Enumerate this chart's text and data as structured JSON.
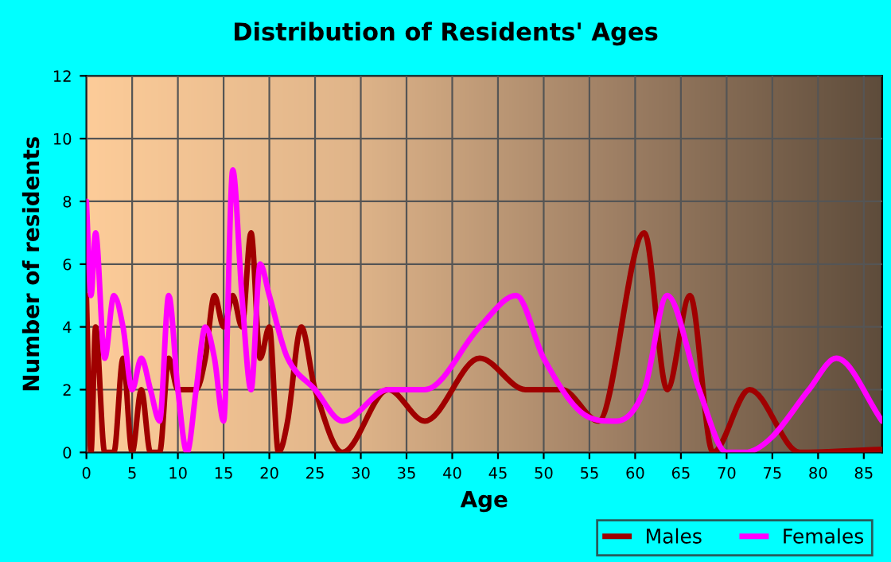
{
  "chart_data": {
    "type": "line",
    "title": "Distribution of Residents' Ages",
    "xlabel": "Age",
    "ylabel": "Number of residents",
    "series": [
      {
        "name": "Males",
        "color": "#a00000",
        "x": [
          0,
          0.5,
          1,
          2,
          3,
          4,
          5,
          6,
          7,
          8,
          9,
          10,
          11,
          12,
          13,
          14,
          15,
          16,
          17,
          18,
          19,
          20,
          21,
          22,
          23.5,
          25,
          28,
          33,
          37,
          43,
          48,
          52,
          56,
          61,
          63.5,
          66,
          68.5,
          72.5,
          78,
          87
        ],
        "values": [
          5,
          0,
          4,
          0,
          0,
          3,
          0,
          2,
          0,
          0,
          3,
          2,
          2,
          2,
          3,
          5,
          4,
          5,
          4,
          7,
          3,
          4,
          0,
          1,
          4,
          2,
          0,
          2,
          1,
          3,
          2,
          2,
          1,
          7,
          2,
          5,
          0,
          2,
          0,
          0.1
        ]
      },
      {
        "name": "Females",
        "color": "#ff00ff",
        "x": [
          0,
          0.5,
          1,
          2,
          3,
          4,
          5,
          6,
          7,
          8,
          9,
          10,
          11,
          12,
          13,
          14,
          15,
          16,
          17,
          18,
          19,
          20,
          22,
          25,
          28,
          33,
          37,
          43,
          47,
          50,
          54,
          58,
          61,
          63.5,
          67,
          70,
          72,
          75,
          79,
          82,
          87
        ],
        "values": [
          8,
          5,
          7,
          3,
          5,
          4,
          2,
          3,
          2,
          1,
          5,
          2,
          0,
          2,
          4,
          3,
          1,
          9,
          5,
          2,
          6,
          5,
          3,
          2,
          1,
          2,
          2,
          4,
          5,
          3,
          1.3,
          1,
          2,
          5,
          2,
          0,
          0,
          0.5,
          2,
          3,
          1
        ]
      }
    ],
    "xlim": [
      0,
      87
    ],
    "xticks": [
      0,
      5,
      10,
      15,
      20,
      25,
      30,
      35,
      40,
      45,
      50,
      55,
      60,
      65,
      70,
      75,
      80,
      85
    ],
    "ylim": [
      0,
      12
    ],
    "yticks": [
      0,
      2,
      4,
      6,
      8,
      10,
      12
    ],
    "grid": true,
    "legend": "bottom right",
    "marker": "none",
    "line_style": "solid"
  }
}
